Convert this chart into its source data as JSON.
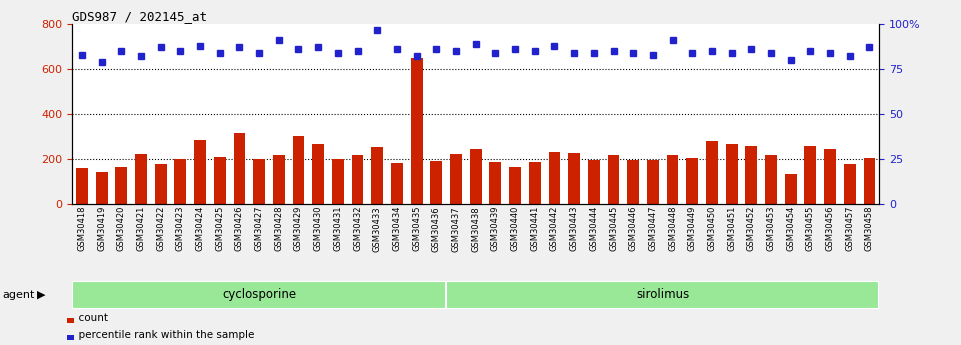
{
  "title": "GDS987 / 202145_at",
  "samples": [
    "GSM30418",
    "GSM30419",
    "GSM30420",
    "GSM30421",
    "GSM30422",
    "GSM30423",
    "GSM30424",
    "GSM30425",
    "GSM30426",
    "GSM30427",
    "GSM30428",
    "GSM30429",
    "GSM30430",
    "GSM30431",
    "GSM30432",
    "GSM30433",
    "GSM30434",
    "GSM30435",
    "GSM30436",
    "GSM30437",
    "GSM30438",
    "GSM30439",
    "GSM30440",
    "GSM30441",
    "GSM30442",
    "GSM30443",
    "GSM30444",
    "GSM30445",
    "GSM30446",
    "GSM30447",
    "GSM30448",
    "GSM30449",
    "GSM30450",
    "GSM30451",
    "GSM30452",
    "GSM30453",
    "GSM30454",
    "GSM30455",
    "GSM30456",
    "GSM30457",
    "GSM30458"
  ],
  "counts": [
    160,
    142,
    165,
    220,
    178,
    200,
    285,
    207,
    315,
    200,
    215,
    300,
    265,
    200,
    215,
    250,
    180,
    650,
    190,
    220,
    245,
    185,
    165,
    185,
    230,
    225,
    195,
    215,
    195,
    195,
    215,
    205,
    280,
    265,
    255,
    215,
    130,
    255,
    245,
    175,
    205
  ],
  "percentiles": [
    83,
    79,
    85,
    82,
    87,
    85,
    88,
    84,
    87,
    84,
    91,
    86,
    87,
    84,
    85,
    97,
    86,
    82,
    86,
    85,
    89,
    84,
    86,
    85,
    88,
    84,
    84,
    85,
    84,
    83,
    91,
    84,
    85,
    84,
    86,
    84,
    80,
    85,
    84,
    82,
    87
  ],
  "ylim_left": [
    0,
    800
  ],
  "ylim_right": [
    0,
    100
  ],
  "yticks_left": [
    0,
    200,
    400,
    600,
    800
  ],
  "yticks_right": [
    0,
    25,
    50,
    75,
    100
  ],
  "ytick_right_labels": [
    "0",
    "25",
    "50",
    "75",
    "100%"
  ],
  "cyclosporine_count": 19,
  "bar_color": "#cc2200",
  "dot_color": "#2222cc",
  "cyclosporine_color": "#98e898",
  "sirolimus_color": "#98e898",
  "agent_label": "agent",
  "group1_label": "cyclosporine",
  "group2_label": "sirolimus",
  "legend_count_label": "count",
  "legend_pct_label": "percentile rank within the sample",
  "label_bg_color": "#d8d8d8",
  "fig_bg_color": "#f0f0f0",
  "plot_bg": "#ffffff"
}
